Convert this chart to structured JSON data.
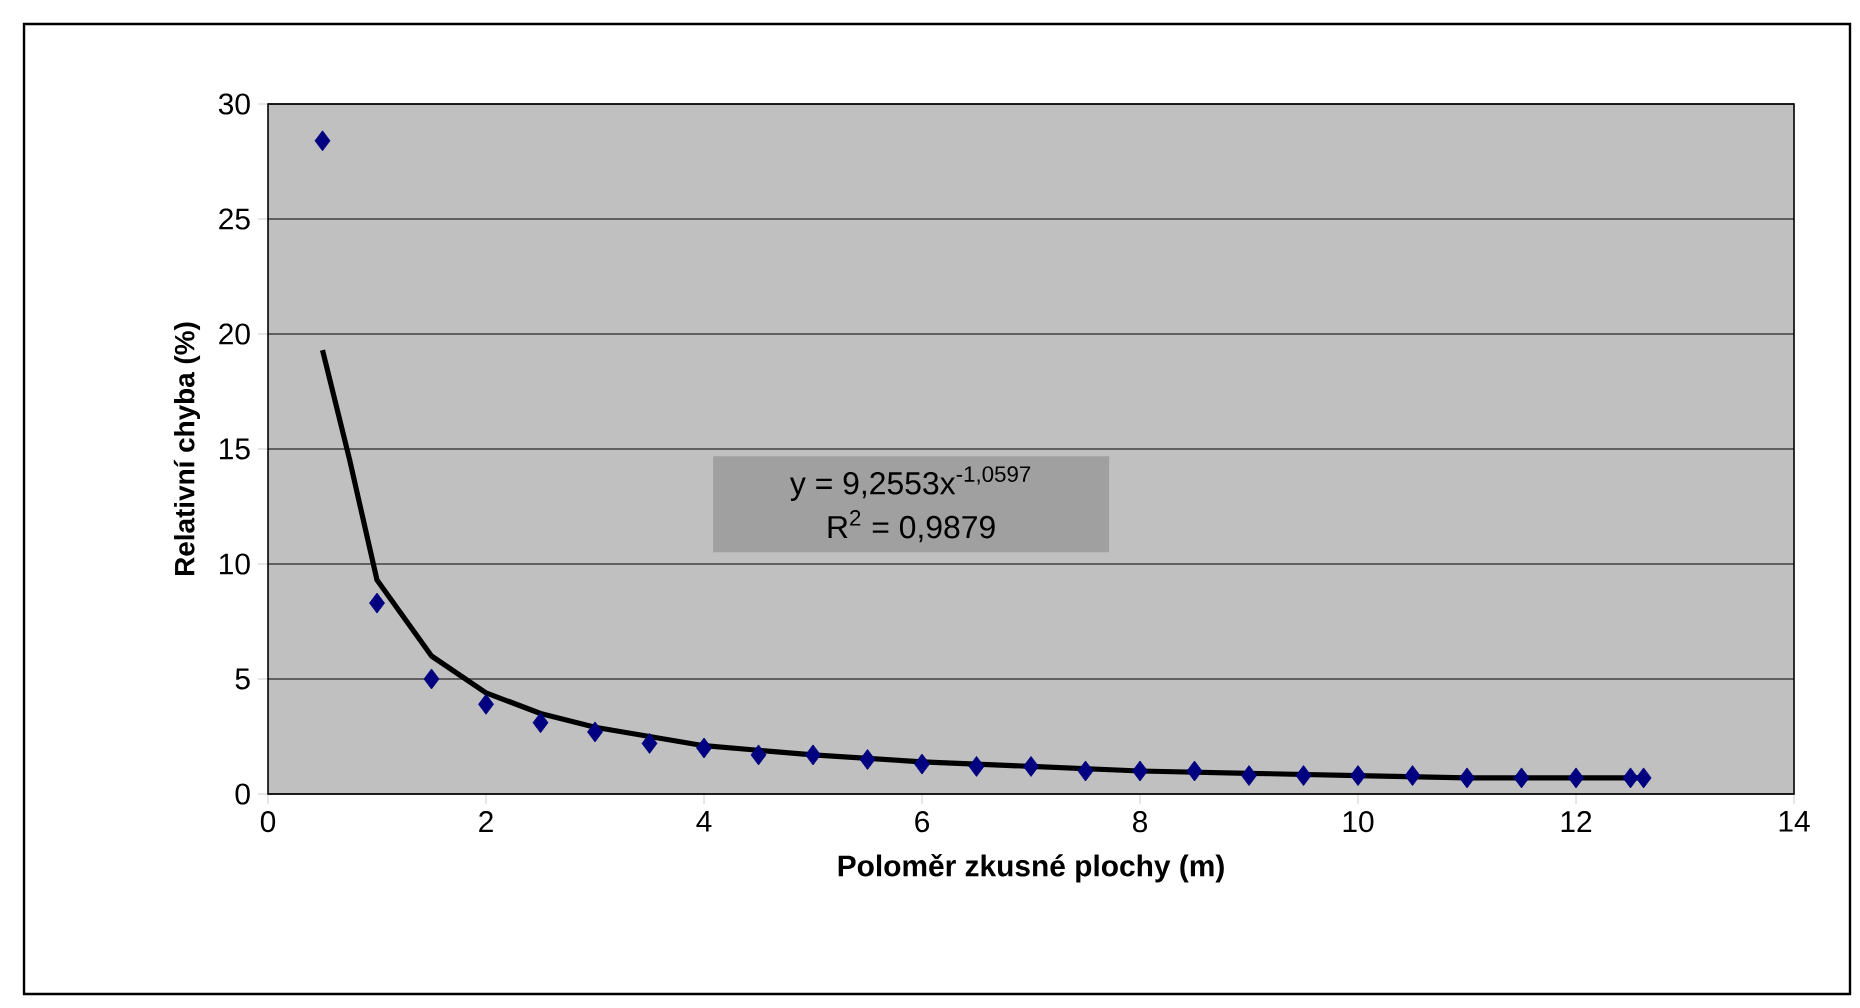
{
  "chart_data": {
    "type": "scatter",
    "xlabel": "Poloměr zkusné plochy (m)",
    "ylabel": "Relativní chyba (%)",
    "annotations": [
      "y = 9,2553x$^{-1,0597}$",
      "R$^{2}$ = 0,9879"
    ],
    "series": [
      {
        "color": "#000080",
        "marker": "diamond",
        "x": [
          0.5,
          1,
          1.5,
          2,
          2.5,
          3,
          3.5,
          4,
          4.5,
          5,
          5.5,
          6,
          6.5,
          7,
          7.5,
          8,
          8.5,
          9,
          9.5,
          10,
          10.5,
          11,
          11.5,
          12,
          12.5,
          12.62
        ],
        "values": [
          28.4,
          8.3,
          5.0,
          3.9,
          3.1,
          2.7,
          2.2,
          2.0,
          1.7,
          1.7,
          1.5,
          1.3,
          1.2,
          1.2,
          1.0,
          1.0,
          1.0,
          0.8,
          0.8,
          0.8,
          0.8,
          0.7,
          0.7,
          0.7,
          0.7,
          0.7
        ]
      },
      {
        "type": "line",
        "color": "#000000",
        "marker": "none",
        "x": [
          0.5,
          0.75,
          1,
          1.5,
          2,
          2.5,
          3,
          3.5,
          4,
          5,
          6,
          7,
          8,
          9,
          10,
          11,
          12,
          12.62
        ],
        "values": [
          19.3,
          14.5,
          9.3,
          6.0,
          4.4,
          3.5,
          2.9,
          2.5,
          2.1,
          1.7,
          1.4,
          1.2,
          1.0,
          0.9,
          0.8,
          0.7,
          0.7,
          0.7
        ]
      }
    ],
    "xlim": [
      0,
      14
    ],
    "xticks": [
      0,
      2,
      4,
      6,
      8,
      10,
      12,
      14
    ],
    "ylim": [
      0,
      30
    ],
    "yticks": [
      0,
      5,
      10,
      15,
      20,
      25,
      30
    ],
    "grid": "y"
  }
}
